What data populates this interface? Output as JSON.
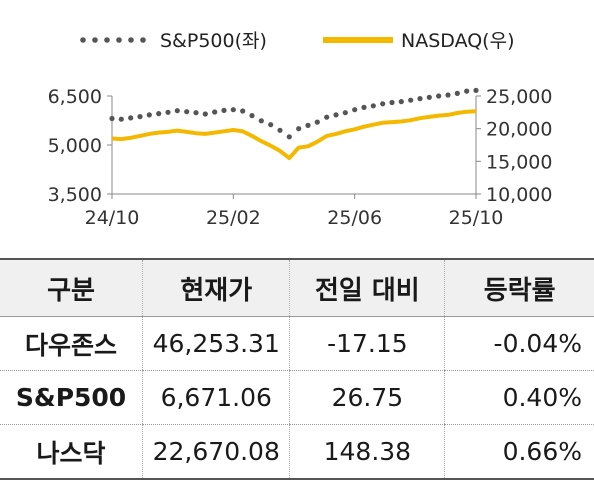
{
  "chart_data": {
    "type": "line",
    "legend_position": "top",
    "x_ticks": [
      "24/10",
      "25/02",
      "25/06",
      "25/10"
    ],
    "y_left": {
      "ticks": [
        "3,500",
        "5,000",
        "6,500"
      ],
      "range": [
        3500,
        6500
      ]
    },
    "y_right": {
      "ticks": [
        "10,000",
        "15,000",
        "20,000",
        "25,000"
      ],
      "range": [
        10000,
        25000
      ]
    },
    "series": [
      {
        "name": "S&P500(좌)",
        "axis": "left",
        "style": "dotted",
        "color": "#555555",
        "values": [
          5810,
          5790,
          5830,
          5870,
          5920,
          5960,
          6000,
          6050,
          6020,
          5990,
          5950,
          6010,
          6060,
          6080,
          6040,
          5900,
          5740,
          5620,
          5450,
          5250,
          5500,
          5600,
          5700,
          5850,
          5920,
          5990,
          6080,
          6150,
          6200,
          6260,
          6300,
          6330,
          6370,
          6420,
          6460,
          6500,
          6530,
          6580,
          6650,
          6671
        ]
      },
      {
        "name": "NASDAQ(우)",
        "axis": "right",
        "style": "solid",
        "color": "#F5B800",
        "values": [
          18500,
          18400,
          18600,
          18900,
          19200,
          19400,
          19500,
          19700,
          19500,
          19300,
          19200,
          19400,
          19600,
          19800,
          19600,
          18900,
          18100,
          17400,
          16600,
          15500,
          17100,
          17300,
          18000,
          18900,
          19200,
          19600,
          19900,
          20300,
          20600,
          20900,
          21000,
          21100,
          21300,
          21600,
          21800,
          22000,
          22100,
          22400,
          22600,
          22670
        ]
      }
    ]
  },
  "table": {
    "headers": [
      "구분",
      "현재가",
      "전일 대비",
      "등락률"
    ],
    "rows": [
      {
        "name": "다우존스",
        "price": "46,253.31",
        "change": "-17.15",
        "pct": "-0.04%"
      },
      {
        "name": "S&P500",
        "price": "6,671.06",
        "change": "26.75",
        "pct": "0.40%"
      },
      {
        "name": "나스닥",
        "price": "22,670.08",
        "change": "148.38",
        "pct": "0.66%"
      }
    ]
  }
}
